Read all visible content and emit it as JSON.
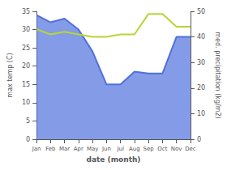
{
  "chart_data": {
    "type": "line",
    "categories": [
      "Jan",
      "Feb",
      "Mar",
      "Apr",
      "May",
      "Jun",
      "Jul",
      "Aug",
      "Sep",
      "Oct",
      "Nov",
      "Dec"
    ],
    "series": [
      {
        "type": "area",
        "values": [
          34,
          32,
          33,
          30,
          24,
          15,
          15,
          18.5,
          18,
          18,
          28,
          28
        ]
      },
      {
        "type": "line",
        "axis": "y2",
        "values": [
          43,
          41,
          42,
          41,
          40,
          40,
          41,
          41,
          49,
          49,
          44,
          44
        ]
      }
    ],
    "xlabel": "date (month)",
    "ylabel": "max temp (C)",
    "y2label": "med. precipitation (kg/m2)",
    "ylim": [
      0,
      35
    ],
    "yticks": [
      0,
      5,
      10,
      15,
      20,
      25,
      30,
      35
    ],
    "y2lim": [
      0,
      50
    ],
    "y2ticks": [
      0,
      10,
      20,
      30,
      40,
      50
    ],
    "grid": false
  }
}
